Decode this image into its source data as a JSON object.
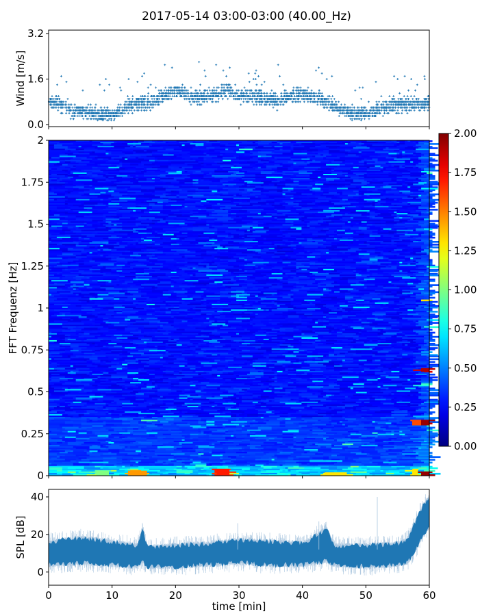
{
  "title": "2017-05-14 03:00-03:00 (40.00_Hz)",
  "chart_data": [
    {
      "type": "scatter",
      "panel": "wind",
      "ylabel": "Wind [m/s]",
      "xlim": [
        0,
        60
      ],
      "ylim": [
        0.0,
        3.2
      ],
      "yticks": [
        "0.0",
        "1.6",
        "3.2"
      ],
      "marker": "+",
      "color": "#1f77b4",
      "trend": [
        {
          "x": 0,
          "y": 0.8
        },
        {
          "x": 2,
          "y": 0.7
        },
        {
          "x": 4,
          "y": 0.45
        },
        {
          "x": 6,
          "y": 0.45
        },
        {
          "x": 8,
          "y": 0.35
        },
        {
          "x": 10,
          "y": 0.35
        },
        {
          "x": 12,
          "y": 0.6
        },
        {
          "x": 14,
          "y": 0.75
        },
        {
          "x": 16,
          "y": 0.75
        },
        {
          "x": 18,
          "y": 1.0
        },
        {
          "x": 20,
          "y": 1.2
        },
        {
          "x": 22,
          "y": 1.05
        },
        {
          "x": 24,
          "y": 0.95
        },
        {
          "x": 26,
          "y": 1.05
        },
        {
          "x": 28,
          "y": 1.2
        },
        {
          "x": 30,
          "y": 1.0
        },
        {
          "x": 32,
          "y": 1.0
        },
        {
          "x": 34,
          "y": 0.9
        },
        {
          "x": 36,
          "y": 0.85
        },
        {
          "x": 38,
          "y": 1.0
        },
        {
          "x": 40,
          "y": 1.1
        },
        {
          "x": 42,
          "y": 0.95
        },
        {
          "x": 44,
          "y": 0.8
        },
        {
          "x": 46,
          "y": 0.55
        },
        {
          "x": 48,
          "y": 0.4
        },
        {
          "x": 50,
          "y": 0.4
        },
        {
          "x": 52,
          "y": 0.55
        },
        {
          "x": 54,
          "y": 0.7
        },
        {
          "x": 56,
          "y": 0.7
        },
        {
          "x": 58,
          "y": 0.7
        },
        {
          "x": 60,
          "y": 0.75
        }
      ]
    },
    {
      "type": "heatmap",
      "panel": "spectrogram",
      "ylabel": "FFT Frequenz [Hz]",
      "xlim": [
        0,
        60
      ],
      "ylim": [
        0,
        2
      ],
      "yticks": [
        "0",
        "0.25",
        "0.5",
        "0.75",
        "1",
        "1.25",
        "1.5",
        "1.75",
        "2"
      ],
      "colormap": "jet",
      "clim": [
        0.0,
        2.0
      ],
      "colorbar_ticks": [
        "0.00",
        "0.25",
        "0.50",
        "0.75",
        "1.00",
        "1.25",
        "1.50",
        "1.75",
        "2.00"
      ],
      "hotspots": [
        {
          "x0": 12.5,
          "x1": 15.5,
          "f0": 0.0,
          "f1": 0.03,
          "value": 1.45
        },
        {
          "x0": 7.5,
          "x1": 9.5,
          "f0": 0.0,
          "f1": 0.03,
          "value": 1.0
        },
        {
          "x0": 26.5,
          "x1": 28.5,
          "f0": 0.0,
          "f1": 0.04,
          "value": 1.7
        },
        {
          "x0": 43.5,
          "x1": 47,
          "f0": 0.0,
          "f1": 0.02,
          "value": 1.3
        },
        {
          "x0": 57.3,
          "x1": 58.2,
          "f0": 0.0,
          "f1": 0.04,
          "value": 1.3
        },
        {
          "x0": 57.3,
          "x1": 58.7,
          "f0": 0.3,
          "f1": 0.33,
          "value": 1.6
        },
        {
          "x0": 58.7,
          "x1": 60,
          "f0": 0.3,
          "f1": 0.33,
          "value": 1.95
        },
        {
          "x0": 58.7,
          "x1": 60,
          "f0": 0.0,
          "f1": 0.025,
          "value": 1.95
        },
        {
          "x0": 58.7,
          "x1": 60,
          "f0": 0.62,
          "f1": 0.64,
          "value": 1.9
        },
        {
          "x0": 58.7,
          "x1": 60,
          "f0": 1.04,
          "f1": 1.05,
          "value": 1.3
        }
      ]
    },
    {
      "type": "area",
      "panel": "spl",
      "ylabel": "SPL [dB]",
      "xlabel": "time [min]",
      "xlim": [
        0,
        60
      ],
      "ylim": [
        -7,
        44
      ],
      "xticks": [
        "0",
        "10",
        "20",
        "30",
        "40",
        "50",
        "60"
      ],
      "yticks": [
        "0",
        "20",
        "40"
      ],
      "color": "#1f77b4",
      "envelope": [
        {
          "x": 0,
          "low": 4,
          "high": 16
        },
        {
          "x": 5,
          "low": 5,
          "high": 18
        },
        {
          "x": 10,
          "low": 4,
          "high": 16
        },
        {
          "x": 14,
          "low": 3,
          "high": 14
        },
        {
          "x": 14.8,
          "low": 6,
          "high": 23
        },
        {
          "x": 15.5,
          "low": 3,
          "high": 13
        },
        {
          "x": 20,
          "low": 3,
          "high": 14
        },
        {
          "x": 25,
          "low": 4,
          "high": 15
        },
        {
          "x": 30,
          "low": 5,
          "high": 17
        },
        {
          "x": 35,
          "low": 4,
          "high": 16
        },
        {
          "x": 40,
          "low": 4,
          "high": 15
        },
        {
          "x": 43.8,
          "low": 6,
          "high": 23
        },
        {
          "x": 45,
          "low": 4,
          "high": 14
        },
        {
          "x": 50,
          "low": 3,
          "high": 14
        },
        {
          "x": 55,
          "low": 4,
          "high": 15
        },
        {
          "x": 56.5,
          "low": 5,
          "high": 17
        },
        {
          "x": 58,
          "low": 13,
          "high": 28
        },
        {
          "x": 59,
          "low": 20,
          "high": 35
        },
        {
          "x": 60,
          "low": 24,
          "high": 40
        }
      ]
    }
  ]
}
